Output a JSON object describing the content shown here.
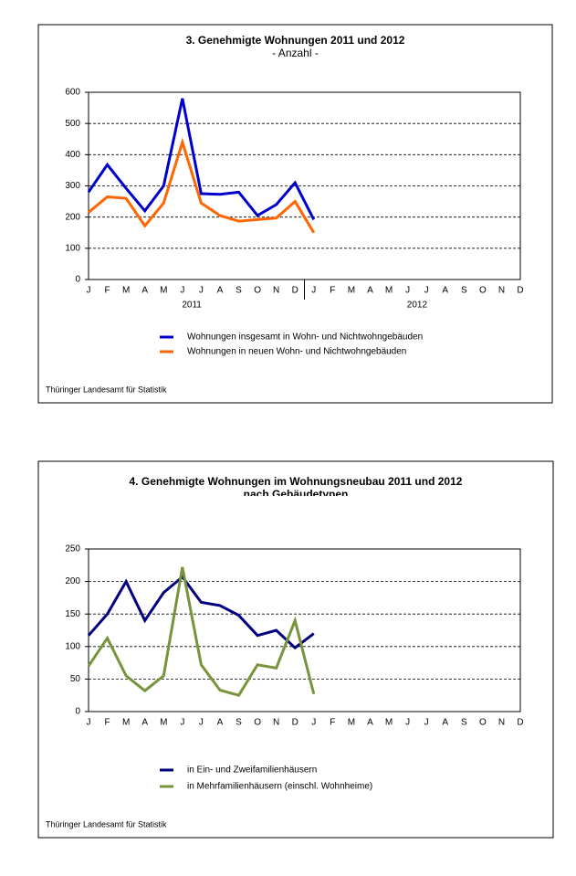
{
  "chart_data": [
    {
      "type": "line",
      "title": "3. Genehmigte Wohnungen 2011 und 2012",
      "subtitle": "- Anzahl -",
      "categories": [
        "J",
        "F",
        "M",
        "A",
        "M",
        "J",
        "J",
        "A",
        "S",
        "O",
        "N",
        "D",
        "J",
        "F",
        "M",
        "A",
        "M",
        "J",
        "J",
        "A",
        "S",
        "O",
        "N",
        "D"
      ],
      "year_labels": [
        "2011",
        "2012"
      ],
      "series": [
        {
          "name": "Wohnungen insgesamt in Wohn- und Nichtwohngebäuden",
          "color": "#0000cc",
          "values": [
            280,
            368,
            292,
            220,
            300,
            580,
            275,
            273,
            280,
            205,
            240,
            310,
            192,
            null,
            null,
            null,
            null,
            null,
            null,
            null,
            null,
            null,
            null,
            null
          ]
        },
        {
          "name": "Wohnungen in neuen Wohn- und Nichtwohngebäuden",
          "color": "#ff6600",
          "values": [
            215,
            265,
            260,
            172,
            245,
            440,
            245,
            205,
            187,
            192,
            197,
            250,
            150,
            null,
            null,
            null,
            null,
            null,
            null,
            null,
            null,
            null,
            null,
            null
          ]
        }
      ],
      "ylim": [
        0,
        600
      ],
      "yticks": [
        0,
        100,
        200,
        300,
        400,
        500,
        600
      ],
      "grid": true,
      "source": "Thüringer Landesamt für Statistik"
    },
    {
      "type": "line",
      "title": "4. Genehmigte Wohnungen im Wohnungsneubau 2011 und 2012",
      "subtitle": "nach Gebäudetypen",
      "categories": [
        "J",
        "F",
        "M",
        "A",
        "M",
        "J",
        "J",
        "A",
        "S",
        "O",
        "N",
        "D",
        "J",
        "F",
        "M",
        "A",
        "M",
        "J",
        "J",
        "A",
        "S",
        "O",
        "N",
        "D"
      ],
      "series": [
        {
          "name": "in Ein- und Zweifamilienhäusern",
          "color": "#000080",
          "values": [
            117,
            150,
            200,
            140,
            183,
            207,
            168,
            163,
            148,
            117,
            125,
            98,
            120,
            null,
            null,
            null,
            null,
            null,
            null,
            null,
            null,
            null,
            null,
            null
          ]
        },
        {
          "name": "in Mehrfamilienhäusern (einschl. Wohnheime)",
          "color": "#77933c",
          "values": [
            70,
            113,
            55,
            32,
            55,
            222,
            72,
            33,
            25,
            72,
            67,
            140,
            27,
            null,
            null,
            null,
            null,
            null,
            null,
            null,
            null,
            null,
            null,
            null
          ]
        }
      ],
      "ylim": [
        0,
        250
      ],
      "yticks": [
        0,
        50,
        100,
        150,
        200,
        250
      ],
      "grid": true,
      "source": "Thüringer Landesamt für Statistik"
    }
  ]
}
